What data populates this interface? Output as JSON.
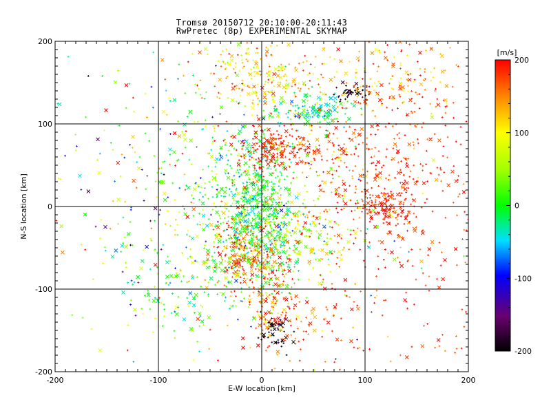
{
  "chart_data": {
    "type": "scatter",
    "title": "Tromsø 20150712 20:10:00-20:11:43",
    "subtitle": "RwPretec (8p) EXPERIMENTAL SKYMAP",
    "xlabel": "E-W location [km]",
    "ylabel": "N-S location [km]",
    "xlim": [
      -200,
      200
    ],
    "ylim": [
      -200,
      200
    ],
    "xticks": [
      "-200",
      "-100",
      "0",
      "100",
      "200"
    ],
    "yticks": [
      "-200",
      "-100",
      "0",
      "100",
      "200"
    ],
    "grid": true,
    "grid_values": [
      -100,
      0,
      100
    ],
    "marker_symbols": [
      "plus",
      "cross"
    ],
    "colorbar": {
      "label": "[m/s]",
      "min": -200,
      "max": 200,
      "ticks": [
        "200",
        "100",
        "0",
        "-100",
        "-200"
      ],
      "tick_values": [
        200,
        100,
        0,
        -100,
        -200
      ],
      "colormap": "black-purple-blue-cyan-green-yellow-orange-red"
    },
    "clusters": [
      {
        "x": -5,
        "y": 0,
        "sx": 18,
        "sy": 45,
        "n": 700,
        "vmean": 0,
        "vsd": 35
      },
      {
        "x": 5,
        "y": 160,
        "sx": 35,
        "sy": 25,
        "n": 260,
        "vmean": 120,
        "vsd": 45
      },
      {
        "x": 50,
        "y": 115,
        "sx": 20,
        "sy": 10,
        "n": 130,
        "vmean": -20,
        "vsd": 30
      },
      {
        "x": 88,
        "y": 138,
        "sx": 10,
        "sy": 5,
        "n": 50,
        "vmean": -190,
        "vsd": 15
      },
      {
        "x": 10,
        "y": 70,
        "sx": 15,
        "sy": 15,
        "n": 150,
        "vmean": 190,
        "vsd": 20
      },
      {
        "x": 55,
        "y": 70,
        "sx": 25,
        "sy": 15,
        "n": 90,
        "vmean": 170,
        "vsd": 30
      },
      {
        "x": 120,
        "y": 0,
        "sx": 13,
        "sy": 12,
        "n": 130,
        "vmean": 190,
        "vsd": 15
      },
      {
        "x": 130,
        "y": 40,
        "sx": 40,
        "sy": 60,
        "n": 300,
        "vmean": 185,
        "vsd": 20
      },
      {
        "x": 135,
        "y": 155,
        "sx": 35,
        "sy": 30,
        "n": 140,
        "vmean": 140,
        "vsd": 40
      },
      {
        "x": -20,
        "y": -55,
        "sx": 15,
        "sy": 20,
        "n": 200,
        "vmean": 170,
        "vsd": 40
      },
      {
        "x": 10,
        "y": -110,
        "sx": 12,
        "sy": 30,
        "n": 120,
        "vmean": 170,
        "vsd": 45
      },
      {
        "x": 15,
        "y": -150,
        "sx": 8,
        "sy": 12,
        "n": 50,
        "vmean": -200,
        "vsd": 20
      },
      {
        "x": 35,
        "y": -45,
        "sx": 25,
        "sy": 25,
        "n": 180,
        "vmean": 80,
        "vsd": 60
      },
      {
        "x": -70,
        "y": -90,
        "sx": 40,
        "sy": 30,
        "n": 160,
        "vmean": 10,
        "vsd": 50
      },
      {
        "x": -50,
        "y": 30,
        "sx": 30,
        "sy": 50,
        "n": 180,
        "vmean": 30,
        "vsd": 80
      },
      {
        "x": 60,
        "y": 20,
        "sx": 40,
        "sy": 60,
        "n": 200,
        "vmean": 120,
        "vsd": 70
      },
      {
        "x": 50,
        "y": -140,
        "sx": 40,
        "sy": 35,
        "n": 100,
        "vmean": 170,
        "vsd": 40
      },
      {
        "x": -130,
        "y": 10,
        "sx": 45,
        "sy": 90,
        "n": 110,
        "vmean": 0,
        "vsd": 110
      },
      {
        "x": 0,
        "y": 0,
        "sx": 100,
        "sy": 100,
        "n": 180,
        "vmean": 90,
        "vsd": 100
      },
      {
        "x": 150,
        "y": -120,
        "sx": 40,
        "sy": 50,
        "n": 60,
        "vmean": 180,
        "vsd": 20
      }
    ]
  }
}
